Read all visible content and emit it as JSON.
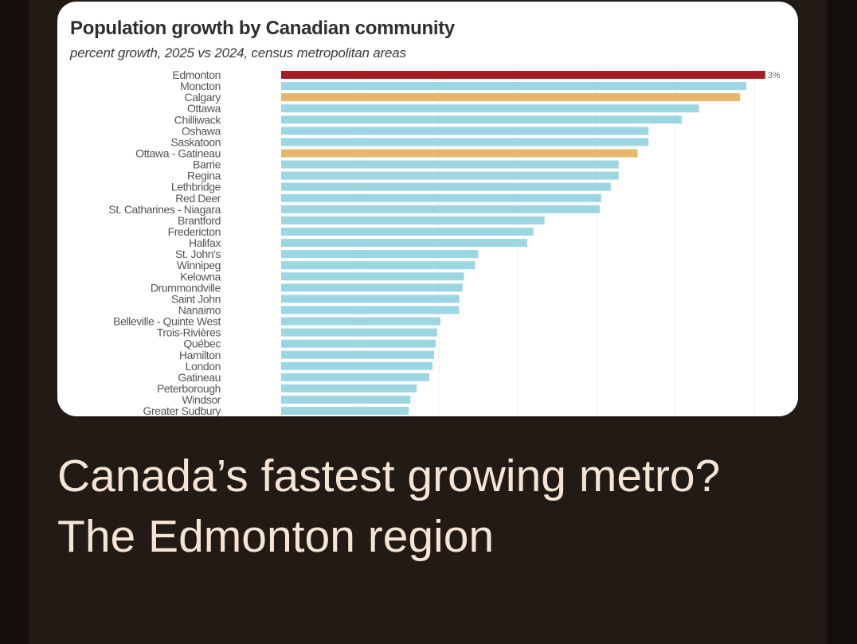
{
  "headline": "Canada’s fastest growing metro? The Edmonton region",
  "colors": {
    "highlight": "#a51c24",
    "default": "#9dd6e3",
    "secondary": "#e8b56c",
    "background": "#211a15",
    "headline": "#f6e4d4"
  },
  "chart_data": {
    "type": "bar",
    "orientation": "horizontal",
    "title": "Population growth by Canadian community",
    "subtitle": "percent growth, 2025 vs 2024, census metropolitan areas",
    "xlabel": "",
    "ylabel": "",
    "xlim": [
      0,
      3.1
    ],
    "grid": true,
    "value_label": {
      "category": "Edmonton",
      "text": "3%"
    },
    "categories": [
      "Edmonton",
      "Moncton",
      "Calgary",
      "Ottawa",
      "Chilliwack",
      "Oshawa",
      "Saskatoon",
      "Ottawa - Gatineau",
      "Barrie",
      "Regina",
      "Lethbridge",
      "Red Deer",
      "St. Catharines - Niagara",
      "Brantford",
      "Fredericton",
      "Halifax",
      "St. John's",
      "Winnipeg",
      "Kelowna",
      "Drummondville",
      "Saint John",
      "Nanaimo",
      "Belleville - Quinte West",
      "Trois-Rivières",
      "Québec",
      "Hamilton",
      "London",
      "Gatineau",
      "Peterborough",
      "Windsor",
      "Greater Sudbury"
    ],
    "values": [
      3.07,
      2.95,
      2.91,
      2.65,
      2.54,
      2.33,
      2.33,
      2.26,
      2.14,
      2.14,
      2.09,
      2.03,
      2.02,
      1.67,
      1.6,
      1.56,
      1.25,
      1.23,
      1.16,
      1.15,
      1.13,
      1.13,
      1.01,
      0.99,
      0.98,
      0.97,
      0.96,
      0.94,
      0.86,
      0.82,
      0.81
    ],
    "bar_colors": [
      "highlight",
      "default",
      "secondary",
      "default",
      "default",
      "default",
      "default",
      "secondary",
      "default",
      "default",
      "default",
      "default",
      "default",
      "default",
      "default",
      "default",
      "default",
      "default",
      "default",
      "default",
      "default",
      "default",
      "default",
      "default",
      "default",
      "default",
      "default",
      "default",
      "default",
      "default",
      "default"
    ]
  }
}
